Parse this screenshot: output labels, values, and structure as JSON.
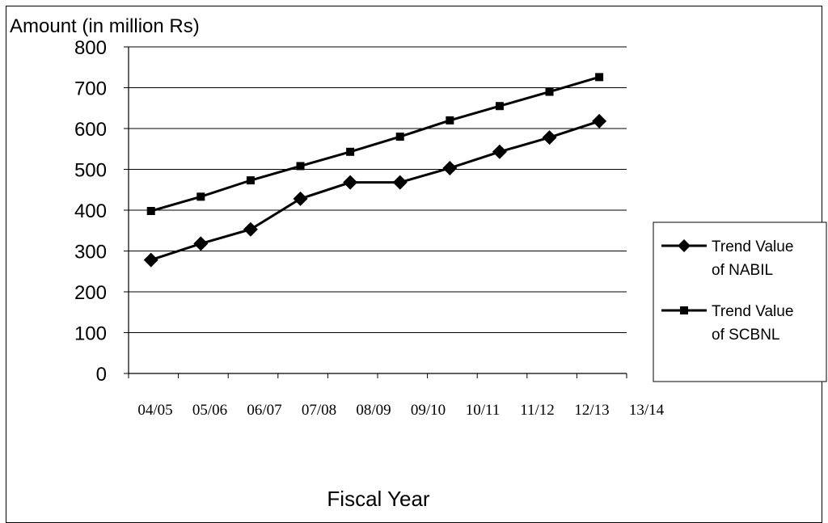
{
  "chart_data": {
    "type": "line",
    "ylabel": "Amount (in million Rs)",
    "xlabel": "Fiscal Year",
    "categories": [
      "04/05",
      "05/06",
      "06/07",
      "07/08",
      "08/09",
      "09/10",
      "10/11",
      "11/12",
      "12/13",
      "13/14"
    ],
    "ylim": [
      0,
      800
    ],
    "yticks": [
      0,
      100,
      200,
      300,
      400,
      500,
      600,
      700,
      800
    ],
    "grid": true,
    "legend_position": "right",
    "series": [
      {
        "name_line1": "Trend Value",
        "name_line2": "of NABIL",
        "marker": "diamond",
        "color": "#000000",
        "values": [
          278,
          318,
          353,
          428,
          468,
          468,
          503,
          543,
          578,
          618
        ]
      },
      {
        "name_line1": "Trend Value",
        "name_line2": "of SCBNL",
        "marker": "square",
        "color": "#000000",
        "values": [
          398,
          433,
          473,
          508,
          543,
          580,
          620,
          655,
          690,
          726
        ]
      }
    ]
  }
}
